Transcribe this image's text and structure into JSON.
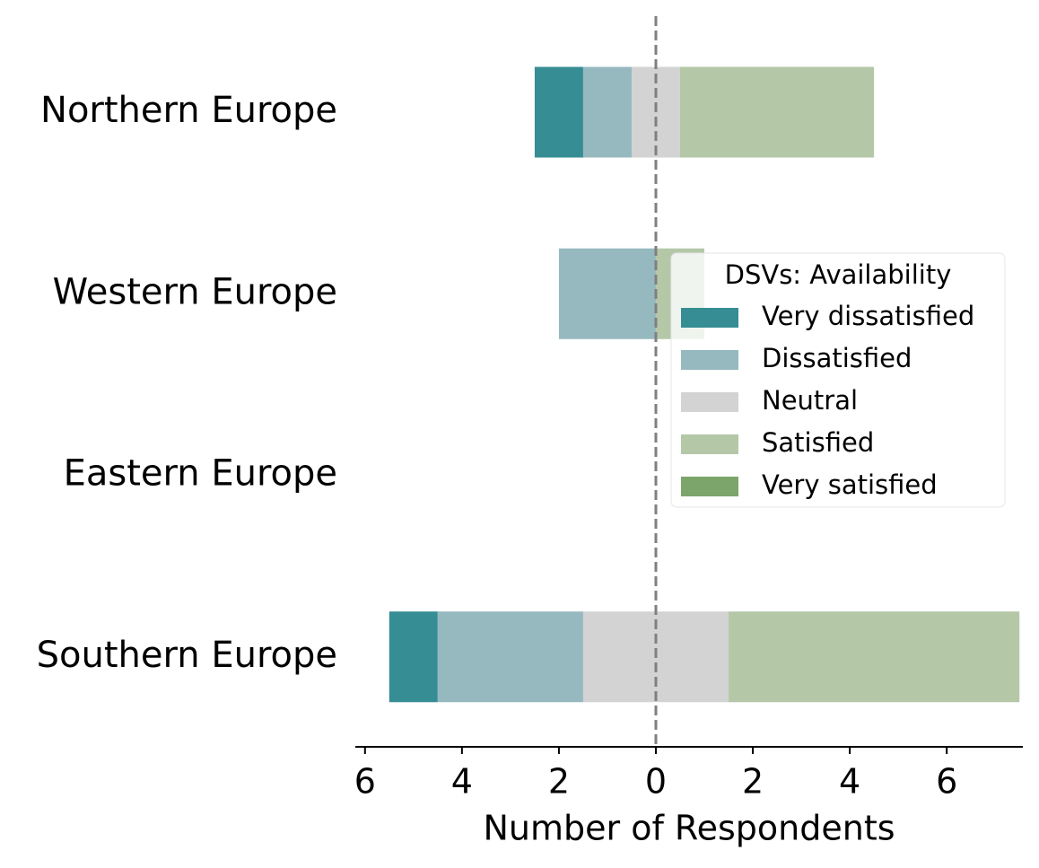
{
  "chart_data": {
    "type": "diverging_bar",
    "categories": [
      "Northern Europe",
      "Western Europe",
      "Eastern Europe",
      "Southern Europe"
    ],
    "series": [
      {
        "name": "Very dissatisfied",
        "color": "#368d94",
        "values": [
          1,
          0,
          0,
          1
        ]
      },
      {
        "name": "Dissatisfied",
        "color": "#96b9bf",
        "values": [
          1,
          2,
          0,
          3
        ]
      },
      {
        "name": "Neutral",
        "color": "#d3d3d3",
        "values": [
          1,
          0,
          0,
          3
        ]
      },
      {
        "name": "Satisfied",
        "color": "#b4c8a8",
        "values": [
          4,
          1,
          0,
          6
        ]
      },
      {
        "name": "Very satisfied",
        "color": "#7ba56a",
        "values": [
          0,
          0,
          0,
          0
        ]
      }
    ],
    "xlabel": "Number of Respondents",
    "legend_title": "DSVs: Availability",
    "legend_loc": "center right",
    "xlim": [
      -6.2,
      7.57
    ],
    "xticks": [
      {
        "value": -6,
        "label": "6"
      },
      {
        "value": -4,
        "label": "4"
      },
      {
        "value": -2,
        "label": "2"
      },
      0,
      2,
      4,
      6
    ]
  }
}
